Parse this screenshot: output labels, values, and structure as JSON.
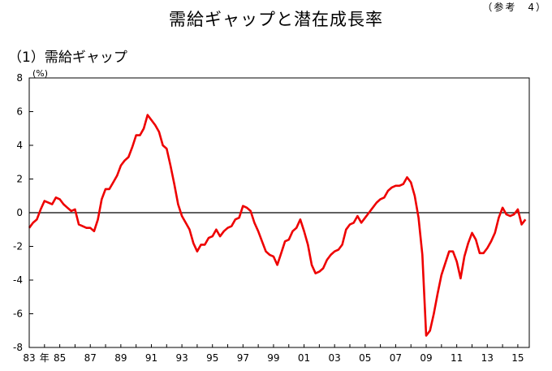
{
  "header": {
    "title": "需給ギャップと潜在成長率",
    "reference": "（参考　4）"
  },
  "chart_data": {
    "type": "line",
    "title": "（1）需給ギャップ",
    "ylabel": "(%)",
    "xlabel": "",
    "ylim": [
      -8,
      8
    ],
    "xlim": [
      1983.0,
      2015.75
    ],
    "y_ticks": [
      8,
      6,
      4,
      2,
      0,
      -2,
      -4,
      -6,
      -8
    ],
    "x_ticks": [
      {
        "label": "83",
        "year": 1983
      },
      {
        "label": "年",
        "year": 1984
      },
      {
        "label": "85",
        "year": 1985
      },
      {
        "label": "87",
        "year": 1987
      },
      {
        "label": "89",
        "year": 1989
      },
      {
        "label": "91",
        "year": 1991
      },
      {
        "label": "93",
        "year": 1993
      },
      {
        "label": "95",
        "year": 1995
      },
      {
        "label": "97",
        "year": 1997
      },
      {
        "label": "99",
        "year": 1999
      },
      {
        "label": "01",
        "year": 2001
      },
      {
        "label": "03",
        "year": 2003
      },
      {
        "label": "05",
        "year": 2005
      },
      {
        "label": "07",
        "year": 2007
      },
      {
        "label": "09",
        "year": 2009
      },
      {
        "label": "11",
        "year": 2011
      },
      {
        "label": "13",
        "year": 2013
      },
      {
        "label": "15",
        "year": 2015
      }
    ],
    "grid": false,
    "zero_line": true,
    "series": [
      {
        "color": "#ee0000",
        "x": [
          1983.0,
          1983.25,
          1983.5,
          1983.75,
          1984.0,
          1984.25,
          1984.5,
          1984.75,
          1985.0,
          1985.25,
          1985.5,
          1985.75,
          1986.0,
          1986.25,
          1986.5,
          1986.75,
          1987.0,
          1987.25,
          1987.5,
          1987.75,
          1988.0,
          1988.25,
          1988.5,
          1988.75,
          1989.0,
          1989.25,
          1989.5,
          1989.75,
          1990.0,
          1990.25,
          1990.5,
          1990.75,
          1991.0,
          1991.25,
          1991.5,
          1991.75,
          1992.0,
          1992.25,
          1992.5,
          1992.75,
          1993.0,
          1993.25,
          1993.5,
          1993.75,
          1994.0,
          1994.25,
          1994.5,
          1994.75,
          1995.0,
          1995.25,
          1995.5,
          1995.75,
          1996.0,
          1996.25,
          1996.5,
          1996.75,
          1997.0,
          1997.25,
          1997.5,
          1997.75,
          1998.0,
          1998.25,
          1998.5,
          1998.75,
          1999.0,
          1999.25,
          1999.5,
          1999.75,
          2000.0,
          2000.25,
          2000.5,
          2000.75,
          2001.0,
          2001.25,
          2001.5,
          2001.75,
          2002.0,
          2002.25,
          2002.5,
          2002.75,
          2003.0,
          2003.25,
          2003.5,
          2003.75,
          2004.0,
          2004.25,
          2004.5,
          2004.75,
          2005.0,
          2005.25,
          2005.5,
          2005.75,
          2006.0,
          2006.25,
          2006.5,
          2006.75,
          2007.0,
          2007.25,
          2007.5,
          2007.75,
          2008.0,
          2008.25,
          2008.5,
          2008.75,
          2009.0,
          2009.25,
          2009.5,
          2009.75,
          2010.0,
          2010.25,
          2010.5,
          2010.75,
          2011.0,
          2011.25,
          2011.5,
          2011.75,
          2012.0,
          2012.25,
          2012.5,
          2012.75,
          2013.0,
          2013.25,
          2013.5,
          2013.75,
          2014.0,
          2014.25,
          2014.5,
          2014.75,
          2015.0,
          2015.25,
          2015.5
        ],
        "values": [
          -0.9,
          -0.6,
          -0.4,
          0.2,
          0.7,
          0.6,
          0.5,
          0.9,
          0.8,
          0.5,
          0.3,
          0.1,
          0.2,
          -0.7,
          -0.8,
          -0.9,
          -0.9,
          -1.1,
          -0.4,
          0.8,
          1.4,
          1.4,
          1.8,
          2.2,
          2.8,
          3.1,
          3.3,
          3.9,
          4.6,
          4.6,
          5.0,
          5.8,
          5.5,
          5.2,
          4.8,
          4.0,
          3.8,
          2.8,
          1.7,
          0.5,
          -0.2,
          -0.6,
          -1.0,
          -1.8,
          -2.3,
          -1.9,
          -1.9,
          -1.5,
          -1.4,
          -1.0,
          -1.4,
          -1.1,
          -0.9,
          -0.8,
          -0.4,
          -0.3,
          0.4,
          0.3,
          0.1,
          -0.6,
          -1.1,
          -1.7,
          -2.3,
          -2.5,
          -2.6,
          -3.1,
          -2.4,
          -1.7,
          -1.6,
          -1.1,
          -0.9,
          -0.4,
          -1.1,
          -1.9,
          -3.1,
          -3.6,
          -3.5,
          -3.3,
          -2.8,
          -2.5,
          -2.3,
          -2.2,
          -1.9,
          -1.0,
          -0.7,
          -0.6,
          -0.2,
          -0.6,
          -0.3,
          0.0,
          0.3,
          0.6,
          0.8,
          0.9,
          1.3,
          1.5,
          1.6,
          1.6,
          1.7,
          2.1,
          1.8,
          1.0,
          -0.3,
          -2.5,
          -7.3,
          -7.0,
          -6.0,
          -4.8,
          -3.7,
          -3.0,
          -2.3,
          -2.3,
          -2.9,
          -3.9,
          -2.6,
          -1.8,
          -1.2,
          -1.6,
          -2.4,
          -2.4,
          -2.1,
          -1.7,
          -1.2,
          -0.3,
          0.3,
          -0.1,
          -0.2,
          -0.1,
          0.2,
          -0.7,
          -0.4
        ]
      }
    ]
  }
}
